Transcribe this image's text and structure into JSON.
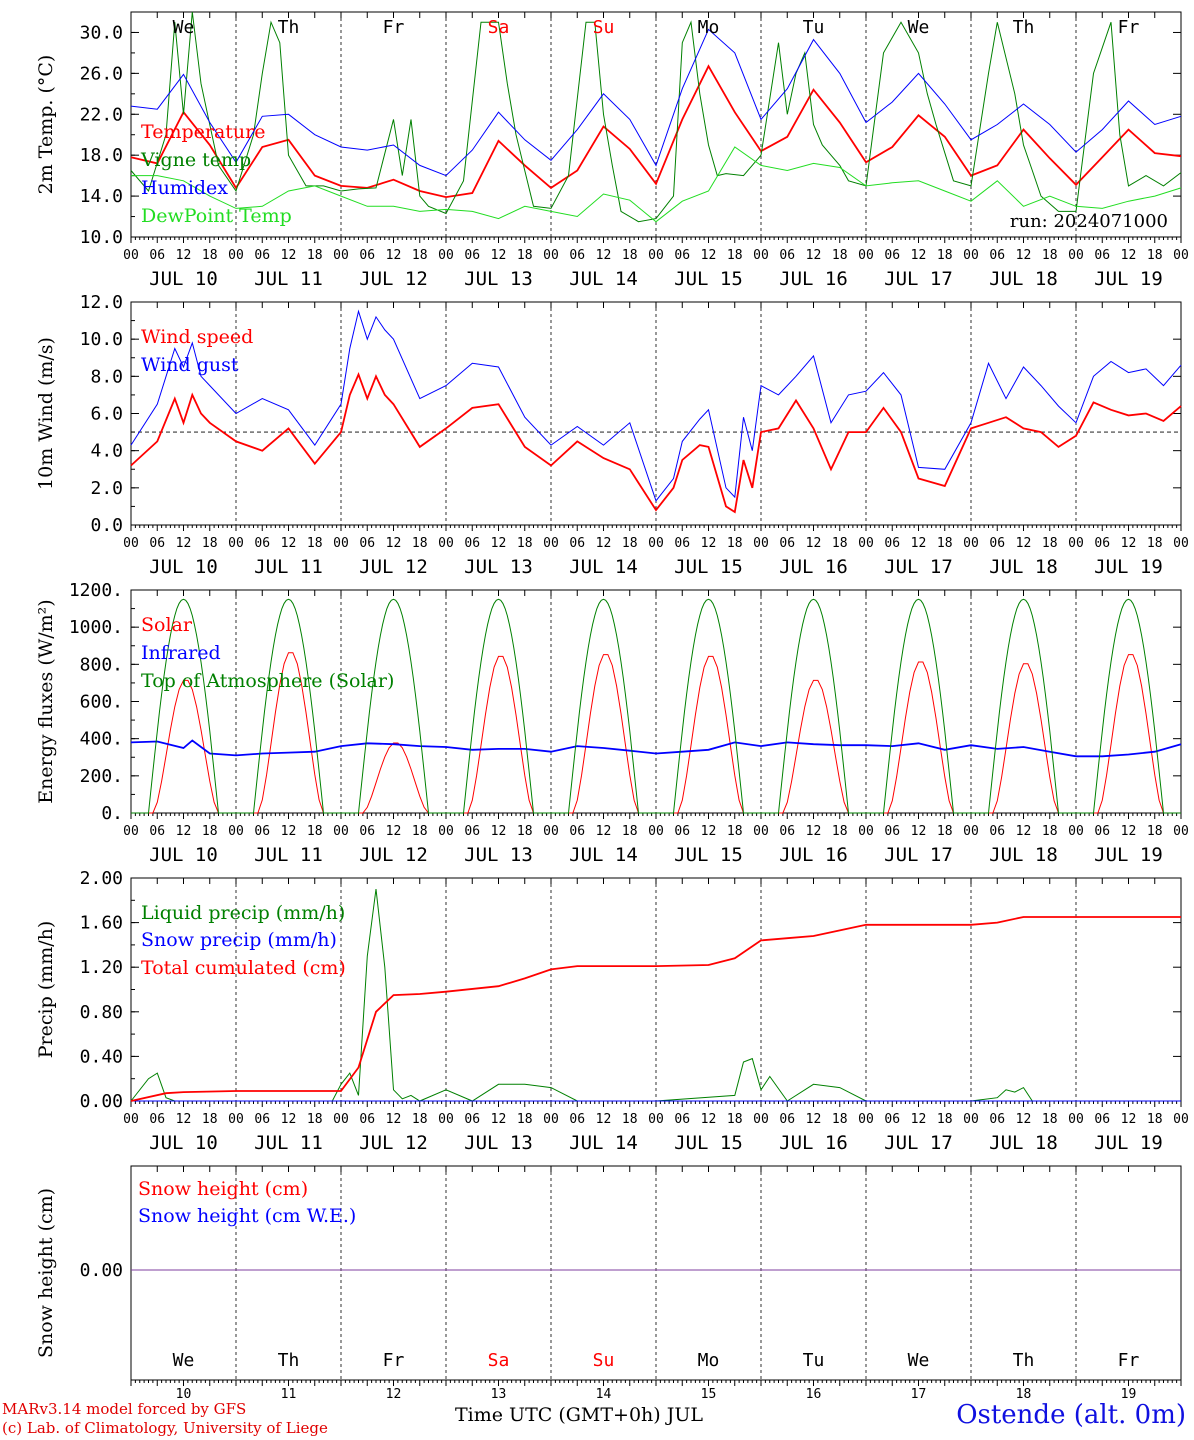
{
  "colors": {
    "red": "#ff0000",
    "green": "#008000",
    "blue": "#0000ff",
    "lightgreen": "#22dd22",
    "purple": "#7f3f9f",
    "black": "#000000"
  },
  "time_axis": {
    "hour_ticks": [
      "00",
      "06",
      "12",
      "18"
    ],
    "dates": [
      "JUL 10",
      "JUL 11",
      "JUL 12",
      "JUL 13",
      "JUL 14",
      "JUL 15",
      "JUL 16",
      "JUL 17",
      "JUL 18",
      "JUL 19"
    ],
    "weekdays": [
      "We",
      "Th",
      "Fr",
      "Sa",
      "Su",
      "Mo",
      "Tu",
      "We",
      "Th",
      "Fr"
    ],
    "weekday_red": [
      false,
      false,
      false,
      true,
      true,
      false,
      false,
      false,
      false,
      false
    ],
    "day_numbers": [
      "10",
      "11",
      "12",
      "13",
      "14",
      "15",
      "16",
      "17",
      "18",
      "19"
    ]
  },
  "footer": {
    "model": "MARv3.14 model forced by GFS",
    "copyright": "(c) Lab. of Climatology, University of Liege",
    "xlabel": "Time UTC (GMT+0h) JUL",
    "station": "Ostende (alt. 0m)"
  },
  "chart_data": [
    {
      "type": "line",
      "ylabel": "2m Temp. (°C)",
      "ylim": [
        10,
        32
      ],
      "yticks": [
        "10.0",
        "14.0",
        "18.0",
        "22.0",
        "26.0",
        "30.0"
      ],
      "annotation": "run: 2024071000",
      "x_unit": "hours since JUL 10 00 UTC",
      "series": [
        {
          "name": "Temperature",
          "color": "red",
          "x": [
            0,
            6,
            12,
            18,
            24,
            30,
            36,
            42,
            48,
            54,
            60,
            66,
            72,
            78,
            84,
            90,
            96,
            102,
            108,
            114,
            120,
            126,
            132,
            138,
            144,
            150,
            156,
            162,
            168,
            174,
            180,
            186,
            192,
            198,
            204,
            210,
            216,
            222,
            228,
            234,
            240
          ],
          "values": [
            17.8,
            17.2,
            22.2,
            19.0,
            14.8,
            18.8,
            19.5,
            16.0,
            15.0,
            14.8,
            15.6,
            14.5,
            13.9,
            14.3,
            19.4,
            17.0,
            14.8,
            16.5,
            20.8,
            18.6,
            15.2,
            21.5,
            26.7,
            22.2,
            18.4,
            19.8,
            24.4,
            21.2,
            17.3,
            18.8,
            21.9,
            19.8,
            16.0,
            17.0,
            20.5,
            17.7,
            15.1,
            17.8,
            20.5,
            18.2,
            17.9
          ]
        },
        {
          "name": "Vigne temp",
          "color": "green",
          "x": [
            0,
            4,
            8,
            10,
            12,
            14,
            16,
            20,
            24,
            28,
            30,
            32,
            34,
            36,
            40,
            44,
            48,
            52,
            56,
            60,
            62,
            64,
            66,
            68,
            72,
            76,
            80,
            84,
            86,
            88,
            92,
            96,
            100,
            104,
            106,
            108,
            110,
            112,
            116,
            120,
            124,
            126,
            128,
            130,
            132,
            134,
            136,
            140,
            144,
            148,
            150,
            152,
            154,
            156,
            158,
            160,
            162,
            164,
            168,
            172,
            176,
            180,
            182,
            184,
            188,
            192,
            196,
            198,
            202,
            204,
            206,
            208,
            212,
            216,
            220,
            224,
            226,
            228,
            232,
            236,
            240
          ],
          "values": [
            16.5,
            14.5,
            20,
            31,
            22,
            32,
            25,
            17,
            14.5,
            20,
            26,
            31,
            29,
            18,
            15,
            15,
            14.5,
            14.7,
            14.8,
            21.5,
            16,
            21.5,
            14,
            13,
            12.3,
            15.5,
            31,
            31,
            25,
            20,
            13,
            12.8,
            16,
            31,
            31,
            22,
            17,
            12.5,
            11.5,
            11.8,
            14,
            29,
            31,
            24,
            19,
            16,
            16.2,
            16,
            18,
            29,
            22,
            26,
            28,
            21,
            19,
            18,
            17,
            15.5,
            15,
            28,
            31,
            28,
            24,
            21,
            15.5,
            15,
            26,
            31,
            24,
            19,
            16.5,
            14,
            12.5,
            12.5,
            26,
            31,
            20,
            15,
            16,
            15,
            16.3
          ]
        },
        {
          "name": "Humidex",
          "color": "blue",
          "x": [
            0,
            6,
            12,
            18,
            24,
            30,
            36,
            42,
            48,
            54,
            60,
            66,
            72,
            78,
            84,
            90,
            96,
            102,
            108,
            114,
            120,
            126,
            132,
            138,
            144,
            150,
            156,
            162,
            168,
            174,
            180,
            186,
            192,
            198,
            204,
            210,
            216,
            222,
            228,
            234,
            240
          ],
          "values": [
            22.8,
            22.5,
            25.9,
            21.2,
            17.3,
            21.8,
            22.0,
            20.0,
            18.8,
            18.5,
            19.0,
            17.0,
            16.0,
            18.5,
            22.2,
            19.5,
            17.5,
            20.5,
            24.0,
            21.5,
            17.0,
            24.5,
            30.3,
            28.0,
            21.5,
            24.5,
            29.3,
            26.0,
            21.2,
            23.2,
            26.0,
            23.0,
            19.5,
            21.0,
            23.0,
            21.0,
            18.3,
            20.5,
            23.3,
            21.0,
            21.8
          ]
        },
        {
          "name": "DewPoint Temp",
          "color": "lightgreen",
          "x": [
            0,
            6,
            12,
            18,
            24,
            30,
            36,
            42,
            48,
            54,
            60,
            66,
            72,
            78,
            84,
            90,
            96,
            102,
            108,
            114,
            120,
            126,
            132,
            138,
            144,
            150,
            156,
            162,
            168,
            174,
            180,
            186,
            192,
            198,
            204,
            210,
            216,
            222,
            228,
            234,
            240
          ],
          "values": [
            16.0,
            16.0,
            15.5,
            14.0,
            12.8,
            13.0,
            14.5,
            15.0,
            14.0,
            13.0,
            13.0,
            12.5,
            12.7,
            12.5,
            11.8,
            13.0,
            12.5,
            12.0,
            14.2,
            13.6,
            11.5,
            13.5,
            14.5,
            18.8,
            17.0,
            16.5,
            17.2,
            16.8,
            15.0,
            15.3,
            15.5,
            14.5,
            13.5,
            15.5,
            13.0,
            14.0,
            13.0,
            12.8,
            13.5,
            14.0,
            14.8
          ]
        }
      ]
    },
    {
      "type": "line",
      "ylabel": "10m Wind (m/s)",
      "ylim": [
        0,
        12
      ],
      "yticks": [
        "0.0",
        "2.0",
        "4.0",
        "6.0",
        "8.0",
        "10.0",
        "12.0"
      ],
      "reference_line": 5,
      "x_unit": "hours since JUL 10 00 UTC",
      "series": [
        {
          "name": "Wind speed",
          "color": "red",
          "x": [
            0,
            6,
            10,
            12,
            14,
            16,
            18,
            24,
            30,
            36,
            42,
            48,
            50,
            52,
            54,
            56,
            58,
            60,
            66,
            72,
            78,
            84,
            90,
            96,
            102,
            108,
            114,
            120,
            124,
            126,
            130,
            132,
            136,
            138,
            140,
            142,
            144,
            148,
            152,
            156,
            160,
            164,
            168,
            172,
            176,
            180,
            186,
            192,
            196,
            200,
            204,
            208,
            212,
            216,
            220,
            224,
            228,
            232,
            236,
            240
          ],
          "values": [
            3.2,
            4.5,
            6.8,
            5.5,
            7.0,
            6.0,
            5.5,
            4.5,
            4.0,
            5.2,
            3.3,
            5.0,
            7.0,
            8.1,
            6.8,
            8.0,
            7.0,
            6.5,
            4.2,
            5.2,
            6.3,
            6.5,
            4.2,
            3.2,
            4.5,
            3.6,
            3.0,
            0.8,
            2.0,
            3.5,
            4.3,
            4.2,
            1.0,
            0.7,
            3.5,
            2.0,
            5.0,
            5.2,
            6.7,
            5.2,
            3.0,
            5.0,
            5.0,
            6.3,
            5.0,
            2.5,
            2.1,
            5.2,
            5.5,
            5.8,
            5.2,
            5.0,
            4.2,
            4.8,
            6.6,
            6.2,
            5.9,
            6.0,
            5.6,
            6.4
          ]
        },
        {
          "name": "Wind gust",
          "color": "blue",
          "x": [
            0,
            6,
            10,
            12,
            14,
            16,
            18,
            24,
            30,
            36,
            42,
            48,
            50,
            52,
            54,
            56,
            58,
            60,
            66,
            72,
            78,
            84,
            90,
            96,
            102,
            108,
            114,
            120,
            124,
            126,
            130,
            132,
            136,
            138,
            140,
            142,
            144,
            148,
            152,
            156,
            160,
            164,
            168,
            172,
            176,
            180,
            186,
            192,
            196,
            200,
            204,
            208,
            212,
            216,
            220,
            224,
            228,
            232,
            236,
            240
          ],
          "values": [
            4.3,
            6.5,
            9.5,
            8.5,
            9.8,
            8.0,
            7.5,
            6.0,
            6.8,
            6.2,
            4.3,
            6.5,
            9.5,
            11.5,
            10.0,
            11.2,
            10.5,
            10.0,
            6.8,
            7.5,
            8.7,
            8.5,
            5.8,
            4.3,
            5.3,
            4.3,
            5.5,
            1.3,
            2.5,
            4.5,
            5.7,
            6.2,
            2.0,
            1.5,
            5.8,
            4.0,
            7.5,
            7.0,
            8.0,
            9.1,
            5.5,
            7.0,
            7.2,
            8.2,
            7.0,
            3.1,
            3.0,
            5.5,
            8.7,
            6.8,
            8.5,
            7.5,
            6.4,
            5.5,
            8.0,
            8.8,
            8.2,
            8.4,
            7.5,
            8.6
          ]
        }
      ]
    },
    {
      "type": "line",
      "ylabel": "Energy fluxes (W/m²)",
      "ylim": [
        0,
        1200
      ],
      "yticks": [
        "0.",
        "200.",
        "400.",
        "600.",
        "800.",
        "1000.",
        "1200."
      ],
      "x_unit": "hours since JUL 10 00 UTC",
      "series": [
        {
          "name": "Solar",
          "color": "red",
          "day_peaks": [
            720,
            870,
            380,
            850,
            860,
            850,
            720,
            820,
            810,
            860
          ],
          "peak_hour": 12
        },
        {
          "name": "Infrared",
          "color": "blue",
          "x": [
            0,
            6,
            12,
            14,
            18,
            24,
            30,
            36,
            42,
            48,
            54,
            60,
            66,
            72,
            78,
            84,
            90,
            96,
            102,
            108,
            114,
            120,
            126,
            132,
            138,
            144,
            150,
            156,
            162,
            168,
            174,
            180,
            186,
            192,
            198,
            204,
            210,
            216,
            222,
            228,
            234,
            240
          ],
          "values": [
            380,
            385,
            350,
            390,
            320,
            310,
            320,
            325,
            330,
            360,
            375,
            370,
            360,
            355,
            340,
            345,
            345,
            330,
            360,
            350,
            335,
            320,
            330,
            340,
            380,
            360,
            380,
            370,
            365,
            365,
            360,
            375,
            340,
            365,
            345,
            355,
            330,
            305,
            305,
            315,
            330,
            370
          ]
        },
        {
          "name": "Top of Atmosphere (Solar)",
          "color": "green",
          "daily_max": 1150,
          "sunrise_hour": 4,
          "sunset_hour": 20
        }
      ]
    },
    {
      "type": "line",
      "ylabel": "Precip (mm/h)",
      "ylim": [
        0,
        2
      ],
      "yticks": [
        "0.00",
        "0.40",
        "0.80",
        "1.20",
        "1.60",
        "2.00"
      ],
      "x_unit": "hours since JUL 10 00 UTC",
      "series": [
        {
          "name": "Liquid precip (mm/h)",
          "color": "green",
          "x": [
            0,
            4,
            6,
            8,
            10,
            14,
            24,
            46,
            48,
            50,
            52,
            54,
            56,
            58,
            60,
            62,
            64,
            66,
            72,
            78,
            84,
            90,
            96,
            102,
            108,
            114,
            120,
            138,
            140,
            142,
            144,
            146,
            150,
            156,
            162,
            168,
            192,
            198,
            200,
            202,
            204,
            206,
            208,
            240
          ],
          "values": [
            0,
            0.2,
            0.25,
            0.03,
            0,
            0,
            0,
            0,
            0.15,
            0.25,
            0.05,
            1.3,
            1.9,
            1.2,
            0.1,
            0.02,
            0.05,
            0,
            0.1,
            0,
            0.15,
            0.15,
            0.12,
            0,
            0,
            0,
            0,
            0.05,
            0.35,
            0.38,
            0.1,
            0.22,
            0,
            0.15,
            0.12,
            0,
            0,
            0.03,
            0.1,
            0.08,
            0.12,
            0,
            0,
            0
          ]
        },
        {
          "name": "Snow precip (mm/h)",
          "color": "blue",
          "x": [
            0,
            240
          ],
          "values": [
            0,
            0
          ]
        },
        {
          "name": "Total cumulated (cm)",
          "color": "red",
          "x": [
            0,
            8,
            12,
            24,
            36,
            48,
            52,
            56,
            60,
            66,
            72,
            84,
            90,
            96,
            102,
            108,
            120,
            132,
            138,
            144,
            150,
            156,
            162,
            168,
            192,
            198,
            204,
            216,
            240
          ],
          "values": [
            0,
            0.07,
            0.08,
            0.09,
            0.09,
            0.09,
            0.3,
            0.8,
            0.95,
            0.96,
            0.98,
            1.03,
            1.1,
            1.18,
            1.21,
            1.21,
            1.21,
            1.22,
            1.28,
            1.44,
            1.46,
            1.48,
            1.53,
            1.58,
            1.58,
            1.6,
            1.65,
            1.65,
            1.65
          ]
        }
      ]
    },
    {
      "type": "line",
      "ylabel": "Snow height (cm)",
      "yticks": [
        "0.00"
      ],
      "x_unit": "hours since JUL 10 00 UTC",
      "series": [
        {
          "name": "Snow height (cm)",
          "color": "red",
          "x": [
            0,
            240
          ],
          "values": [
            0,
            0
          ]
        },
        {
          "name": "Snow height (cm W.E.)",
          "color": "blue",
          "x": [
            0,
            240
          ],
          "values": [
            0,
            0
          ]
        }
      ]
    }
  ]
}
